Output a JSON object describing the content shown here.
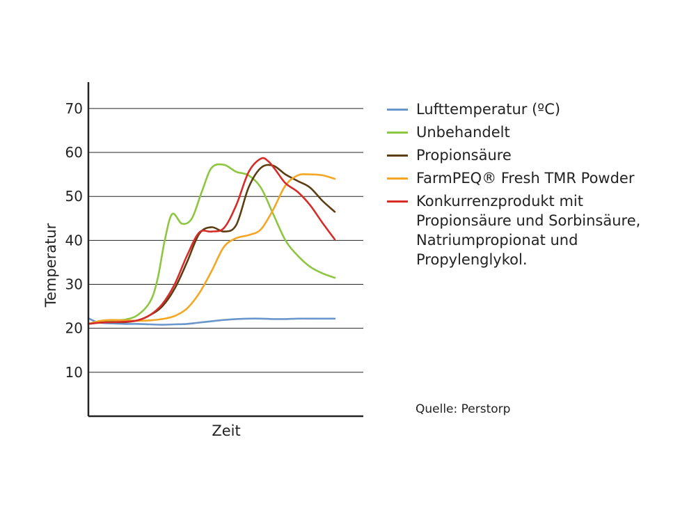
{
  "chart_data": {
    "type": "line",
    "xlabel": "Zeit",
    "ylabel": "Temperatur",
    "ylim": [
      0,
      76
    ],
    "yticks": [
      10,
      20,
      30,
      40,
      50,
      60,
      70
    ],
    "grid": true,
    "legend_placement": "right",
    "source": "Quelle: Perstorp",
    "series": [
      {
        "name": "Lufttemperatur (ºC)",
        "color": "#6a96cc",
        "x": [
          0,
          0.03,
          0.06,
          0.1,
          0.15,
          0.2,
          0.25,
          0.3,
          0.35,
          0.4,
          0.45,
          0.5,
          0.55,
          0.6,
          0.65,
          0.7,
          0.75,
          0.8,
          0.85,
          0.9,
          0.95,
          1.0
        ],
        "values": [
          22.3,
          21.5,
          21.2,
          21.1,
          21.0,
          21.0,
          20.9,
          20.8,
          20.9,
          21.0,
          21.3,
          21.6,
          21.9,
          22.1,
          22.2,
          22.2,
          22.1,
          22.1,
          22.2,
          22.2,
          22.2,
          22.2
        ]
      },
      {
        "name": "Unbehandelt",
        "color": "#8dc63f",
        "x": [
          0,
          0.05,
          0.1,
          0.15,
          0.2,
          0.25,
          0.28,
          0.31,
          0.34,
          0.38,
          0.42,
          0.46,
          0.5,
          0.55,
          0.6,
          0.65,
          0.7,
          0.75,
          0.8,
          0.85,
          0.9,
          0.95,
          1.0
        ],
        "values": [
          21.0,
          21.6,
          21.8,
          22.0,
          23.0,
          26.0,
          31.0,
          40.0,
          46.0,
          43.8,
          45.0,
          51.0,
          56.5,
          57.2,
          55.6,
          54.8,
          52.0,
          46.0,
          40.0,
          36.5,
          34.0,
          32.5,
          31.5
        ]
      },
      {
        "name": "Propionsäure",
        "color": "#5c3d11",
        "x": [
          0,
          0.05,
          0.1,
          0.15,
          0.2,
          0.25,
          0.3,
          0.35,
          0.4,
          0.45,
          0.5,
          0.55,
          0.6,
          0.65,
          0.7,
          0.75,
          0.8,
          0.85,
          0.9,
          0.95,
          1.0
        ],
        "values": [
          21.0,
          21.3,
          21.4,
          21.4,
          21.8,
          23.0,
          25.0,
          29.0,
          35.0,
          41.5,
          43.0,
          42.0,
          43.5,
          52.0,
          56.5,
          57.0,
          55.0,
          53.5,
          52.0,
          49.0,
          46.5
        ]
      },
      {
        "name": "FarmPEQ® Fresh TMR Powder",
        "color": "#f5a623",
        "x": [
          0,
          0.05,
          0.1,
          0.15,
          0.2,
          0.25,
          0.3,
          0.35,
          0.4,
          0.45,
          0.5,
          0.55,
          0.6,
          0.65,
          0.7,
          0.75,
          0.8,
          0.85,
          0.9,
          0.95,
          1.0
        ],
        "values": [
          21.0,
          21.7,
          21.9,
          21.8,
          21.7,
          21.8,
          22.1,
          22.8,
          24.5,
          28.0,
          33.0,
          38.5,
          40.5,
          41.2,
          42.5,
          47.0,
          52.5,
          54.8,
          55.0,
          54.8,
          54.0
        ]
      },
      {
        "name": "Konkurrenzprodukt mit\nPropionsäure und Sorbinsäure,\nNatriumpropionat und\nPropylenglykol.",
        "color": "#d62b27",
        "x": [
          0,
          0.05,
          0.1,
          0.15,
          0.2,
          0.25,
          0.3,
          0.35,
          0.4,
          0.45,
          0.5,
          0.55,
          0.6,
          0.65,
          0.7,
          0.73,
          0.76,
          0.8,
          0.85,
          0.9,
          0.95,
          1.0
        ],
        "values": [
          21.0,
          21.3,
          21.4,
          21.5,
          21.8,
          23.0,
          25.5,
          30.0,
          36.5,
          41.8,
          42.0,
          42.8,
          48.0,
          55.5,
          58.6,
          58.0,
          56.0,
          53.0,
          51.0,
          48.0,
          44.0,
          40.2
        ]
      }
    ]
  }
}
